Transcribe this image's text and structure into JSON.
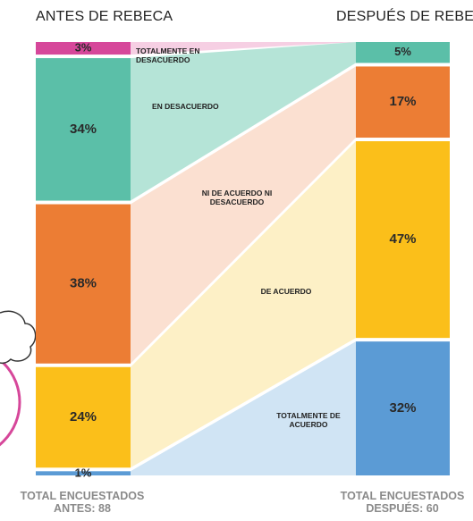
{
  "chart_data": {
    "type": "flow",
    "left_title": "ANTES DE REBECA",
    "right_title": "DESPUÉS DE REBECA",
    "categories": [
      "TOTALMENTE EN DESACUERDO",
      "EN DESACUERDO",
      "NI DE ACUERDO NI DESACUERDO",
      "DE ACUERDO",
      "TOTALMENTE DE ACUERDO"
    ],
    "colors": [
      "#d6479a",
      "#5bbfa8",
      "#ec7d34",
      "#fbbf1a",
      "#5b9bd5"
    ],
    "flow_colors": [
      "#f6cfe3",
      "#b5e4d7",
      "#fbe0d1",
      "#fdf0c6",
      "#d0e4f4"
    ],
    "before": {
      "values": [
        3,
        34,
        38,
        24,
        1
      ],
      "value_labels": [
        "3%",
        "34%",
        "38%",
        "24%",
        "1%"
      ]
    },
    "after": {
      "values": [
        null,
        5,
        17,
        47,
        32
      ],
      "value_labels": [
        null,
        "5%",
        "17%",
        "47%",
        "32%"
      ]
    },
    "footer_left": [
      "TOTAL ENCUESTADOS",
      "ANTES: 88"
    ],
    "footer_right": [
      "TOTAL ENCUESTADOS",
      "DESPUÉS: 60"
    ]
  }
}
